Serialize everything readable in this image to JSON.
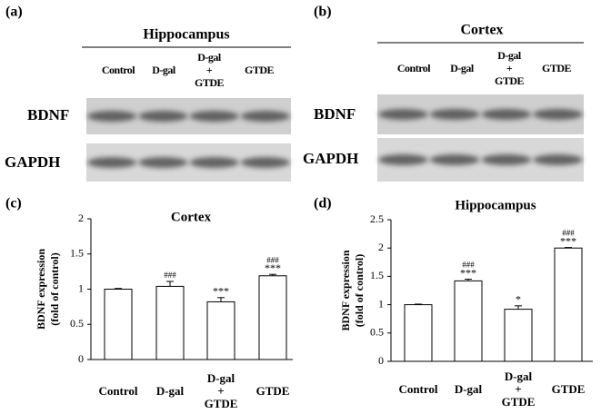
{
  "blots": [
    {
      "label": "(a)",
      "title": "Hippocampus",
      "lanes": [
        "Control",
        "D-gal",
        "D-gal + GTDE",
        "GTDE"
      ],
      "rows": [
        "BDNF",
        "GAPDH"
      ]
    },
    {
      "label": "(b)",
      "title": "Cortex",
      "lanes": [
        "Control",
        "D-gal",
        "D-gal + GTDE",
        "GTDE"
      ],
      "rows": [
        "BDNF",
        "GAPDH"
      ]
    }
  ],
  "chart_data": [
    {
      "type": "bar",
      "label": "(c)",
      "title": "Cortex",
      "y_label": "BDNF expression (fold of control)",
      "categories": [
        "Control",
        "D-gal",
        "D-gal + GTDE",
        "GTDE"
      ],
      "values": [
        1.0,
        1.04,
        0.82,
        1.19
      ],
      "errors": [
        0.01,
        0.07,
        0.06,
        0.02
      ],
      "annotations": [
        [],
        [
          "###"
        ],
        [
          "***"
        ],
        [
          "###",
          "***"
        ]
      ],
      "color": "#ffffff",
      "ylim": [
        0,
        2
      ],
      "yticks": [
        0,
        0.5,
        1,
        1.5,
        2
      ]
    },
    {
      "type": "bar",
      "label": "(d)",
      "title": "Hippocampus",
      "y_label": "BDNF expression (fold of control)",
      "categories": [
        "Control",
        "D-gal",
        "D-gal + GTDE",
        "GTDE"
      ],
      "values": [
        1.0,
        1.42,
        0.92,
        2.0
      ],
      "errors": [
        0.01,
        0.03,
        0.06,
        0.01
      ],
      "annotations": [
        [],
        [
          "###",
          "***"
        ],
        [
          "*"
        ],
        [
          "###",
          "***"
        ]
      ],
      "color": "#ffffff",
      "ylim": [
        0,
        2.5
      ],
      "yticks": [
        0,
        0.5,
        1,
        1.5,
        2,
        2.5
      ]
    }
  ]
}
